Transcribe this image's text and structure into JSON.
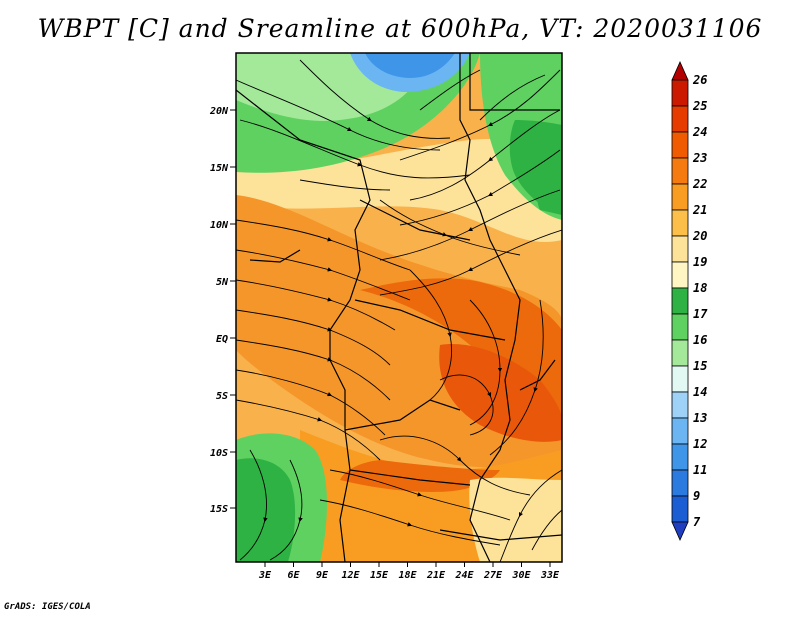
{
  "title": "WBPT [C] and Sreamline at 600hPa, VT: 2020031106",
  "credit": "GrADS: IGES/COLA",
  "map": {
    "lat_labels": [
      "20N",
      "15N",
      "10N",
      "5N",
      "EQ",
      "5S",
      "10S",
      "15S"
    ],
    "lon_labels": [
      "3E",
      "6E",
      "9E",
      "12E",
      "15E",
      "18E",
      "21E",
      "24E",
      "27E",
      "30E",
      "33E"
    ]
  },
  "colorbar": {
    "labels": [
      "26",
      "25",
      "24",
      "23",
      "22",
      "21",
      "20",
      "19",
      "18",
      "17",
      "16",
      "15",
      "14",
      "13",
      "12",
      "11",
      "9",
      "7"
    ],
    "colors": [
      "#b30000",
      "#cc1a00",
      "#e63c00",
      "#f05a00",
      "#f57b10",
      "#f89d22",
      "#fbbf4a",
      "#fde29a",
      "#fff6c4",
      "#2fb244",
      "#5fd160",
      "#a4e89a",
      "#e2f8f2",
      "#9fd2f7",
      "#6bb6f2",
      "#3f96e8",
      "#2b7ae0",
      "#1b5ed4",
      "#1f3fc0"
    ]
  },
  "colors": {
    "warm": "#f7a31f",
    "hot": "#ec6a0c",
    "cool": "#4bbb4f"
  }
}
